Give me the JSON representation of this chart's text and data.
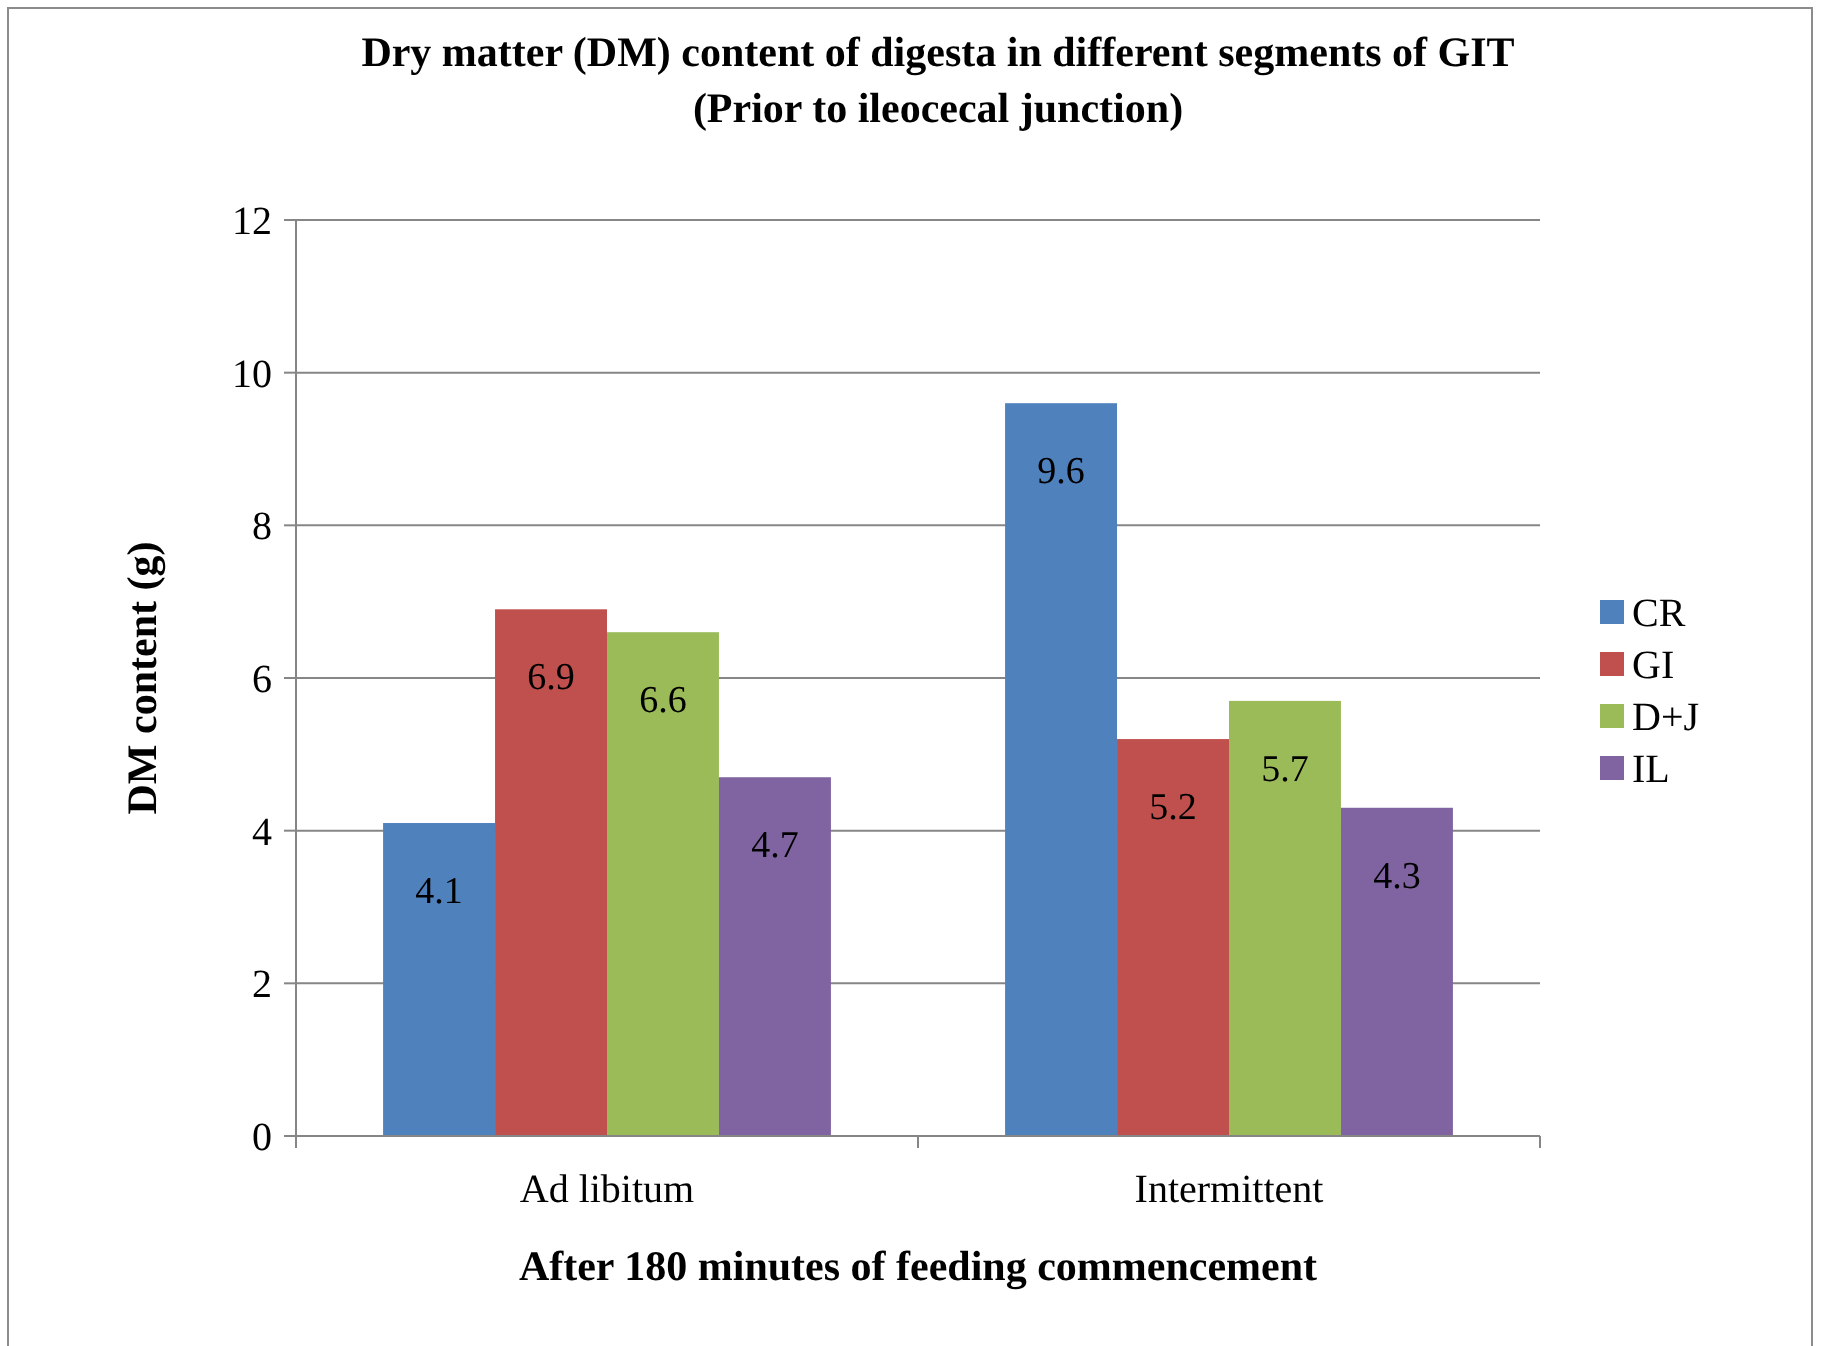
{
  "chart_data": {
    "type": "bar",
    "title": "Dry matter (DM) content of digesta in different segments of GIT (Prior to ileocecal junction)",
    "xlabel": "After 180 minutes of feeding commencement",
    "ylabel": "DM content (g)",
    "categories": [
      "Ad libitum",
      "Intermittent"
    ],
    "series": [
      {
        "name": "CR",
        "color": "#4f81bd",
        "values": [
          4.1,
          9.6
        ]
      },
      {
        "name": "GI",
        "color": "#c0504d",
        "values": [
          6.9,
          5.2
        ]
      },
      {
        "name": "D+J",
        "color": "#9bbb59",
        "values": [
          6.6,
          5.7
        ]
      },
      {
        "name": "IL",
        "color": "#8064a2",
        "values": [
          4.7,
          4.3
        ]
      }
    ],
    "ylim": [
      0,
      12
    ],
    "yticks": [
      0,
      2,
      4,
      6,
      8,
      10,
      12
    ],
    "grid": "y",
    "legend": "right",
    "data_labels": true
  }
}
